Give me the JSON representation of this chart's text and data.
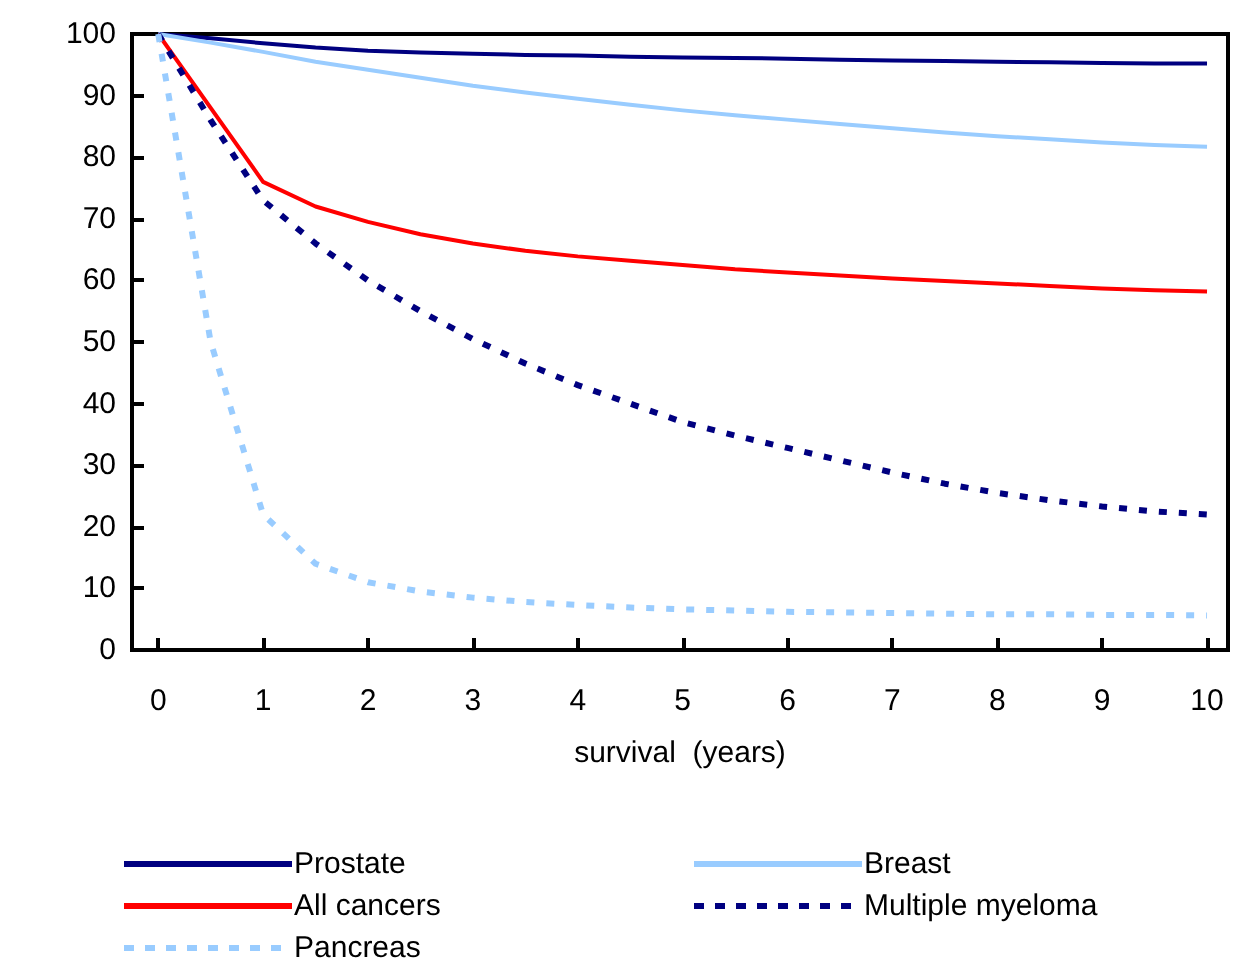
{
  "chart_data": {
    "type": "line",
    "xlabel": "survival  (years)",
    "x": [
      0,
      0.5,
      1,
      1.5,
      2,
      2.5,
      3,
      3.5,
      4,
      4.5,
      5,
      5.5,
      6,
      6.5,
      7,
      7.5,
      8,
      8.5,
      9,
      9.5,
      10
    ],
    "series": [
      {
        "name": "Prostate",
        "color": "#000080",
        "line_style": "solid",
        "values": [
          100,
          99.3,
          98.5,
          97.8,
          97.3,
          97,
          96.8,
          96.6,
          96.5,
          96.3,
          96.2,
          96.1,
          96,
          95.8,
          95.7,
          95.6,
          95.5,
          95.4,
          95.3,
          95.2,
          95.2
        ]
      },
      {
        "name": "Breast",
        "color": "#99ccff",
        "line_style": "solid",
        "values": [
          100,
          98.6,
          97.1,
          95.5,
          94.2,
          92.9,
          91.6,
          90.5,
          89.5,
          88.5,
          87.6,
          86.8,
          86.1,
          85.4,
          84.7,
          84.0,
          83.4,
          82.9,
          82.4,
          82.0,
          81.7
        ]
      },
      {
        "name": "All cancers",
        "color": "#ff0000",
        "line_style": "solid",
        "values": [
          100,
          88,
          76,
          72,
          69.5,
          67.5,
          66,
          64.8,
          63.9,
          63.2,
          62.5,
          61.8,
          61.3,
          60.8,
          60.3,
          59.9,
          59.5,
          59.1,
          58.7,
          58.4,
          58.2
        ]
      },
      {
        "name": "Multiple myeloma",
        "color": "#000080",
        "line_style": "dashed",
        "values": [
          100,
          86,
          73,
          66,
          60,
          55,
          50.5,
          46.5,
          43,
          40,
          37,
          34.8,
          32.8,
          30.8,
          28.8,
          27,
          25.5,
          24.3,
          23.3,
          22.5,
          22
        ]
      },
      {
        "name": "Pancreas",
        "color": "#99ccff",
        "line_style": "dashed",
        "values": [
          100,
          50,
          22,
          14,
          11,
          9.5,
          8.5,
          7.8,
          7.3,
          6.9,
          6.6,
          6.4,
          6.2,
          6.1,
          6.0,
          5.9,
          5.8,
          5.8,
          5.7,
          5.7,
          5.6
        ]
      }
    ],
    "xlim": [
      -0.25,
      10.2
    ],
    "xticks": [
      0,
      1,
      2,
      3,
      4,
      5,
      6,
      7,
      8,
      9,
      10
    ],
    "ylim": [
      0,
      100
    ],
    "yticks": [
      0,
      10,
      20,
      30,
      40,
      50,
      60,
      70,
      80,
      90,
      100
    ],
    "grid": false,
    "legend": "bottom",
    "marker": "none"
  }
}
